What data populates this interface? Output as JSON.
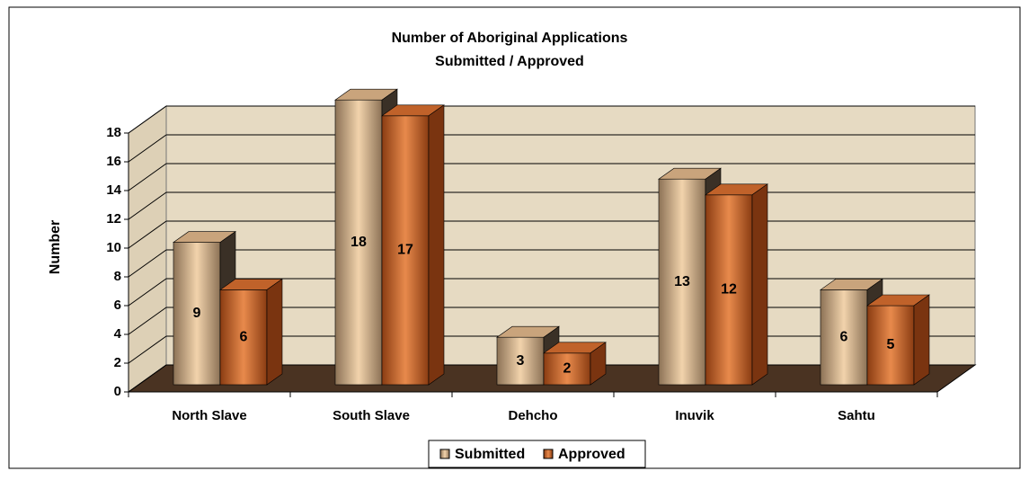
{
  "chart_data": {
    "type": "bar3d",
    "title": "Number of Aboriginal Applications",
    "subtitle": "Submitted / Approved",
    "y_axis_label": "Number",
    "categories": [
      "North Slave",
      "South Slave",
      "Dehcho",
      "Inuvik",
      "Sahtu"
    ],
    "series": [
      {
        "name": "Submitted",
        "color": "#c9a47c",
        "values": [
          9,
          18,
          3,
          13,
          6
        ]
      },
      {
        "name": "Approved",
        "color": "#c0622a",
        "values": [
          6,
          17,
          2,
          12,
          5
        ]
      }
    ],
    "ylim": [
      0,
      18
    ],
    "yticks": [
      0,
      2,
      4,
      6,
      8,
      10,
      12,
      14,
      16,
      18
    ],
    "grid": true,
    "legend": "bottom"
  }
}
